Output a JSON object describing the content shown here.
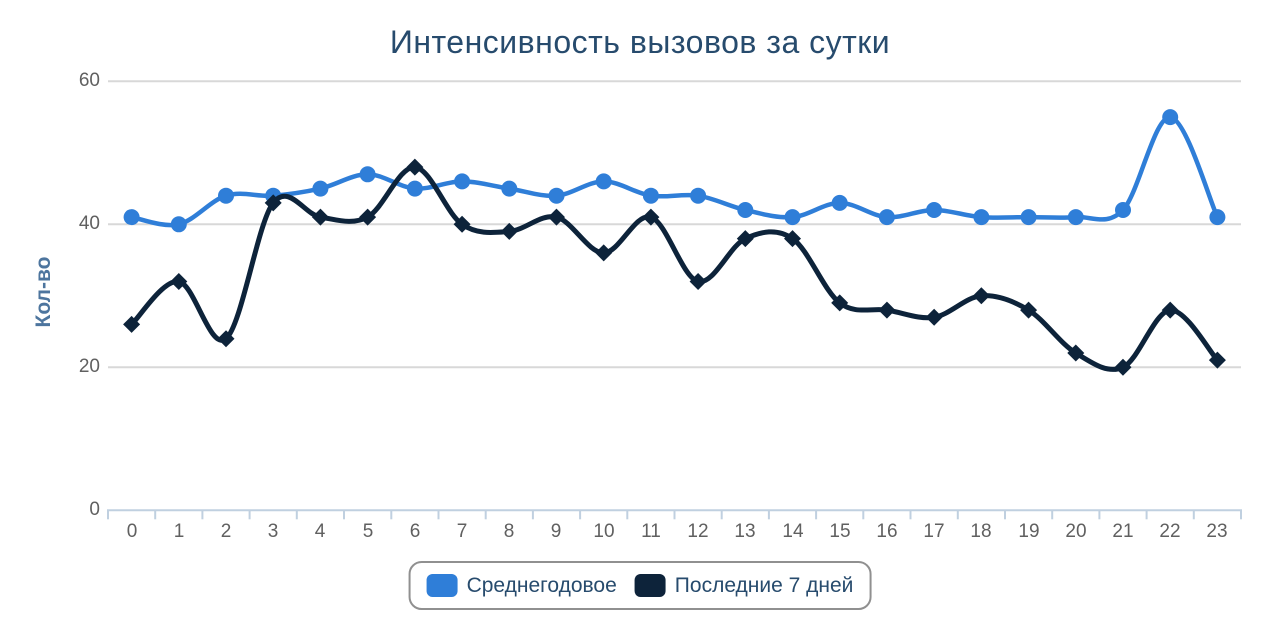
{
  "chart_data": {
    "type": "line",
    "title": "Интенсивность вызовов за сутки",
    "xlabel": "",
    "ylabel": "Кол-во",
    "categories": [
      "0",
      "1",
      "2",
      "3",
      "4",
      "5",
      "6",
      "7",
      "8",
      "9",
      "10",
      "11",
      "12",
      "13",
      "14",
      "15",
      "16",
      "17",
      "18",
      "19",
      "20",
      "21",
      "22",
      "23"
    ],
    "series": [
      {
        "name": "Среднегодовое",
        "color": "#2f7ed8",
        "marker": "circle",
        "values": [
          41,
          40,
          44,
          44,
          45,
          47,
          45,
          46,
          45,
          44,
          46,
          44,
          44,
          42,
          41,
          43,
          41,
          42,
          41,
          41,
          41,
          42,
          55,
          41
        ]
      },
      {
        "name": "Последние 7 дней",
        "color": "#0d233a",
        "marker": "diamond",
        "values": [
          26,
          32,
          24,
          43,
          41,
          41,
          48,
          40,
          39,
          41,
          36,
          41,
          32,
          38,
          38,
          29,
          28,
          27,
          30,
          28,
          22,
          20,
          28,
          21
        ]
      }
    ],
    "y_ticks": [
      0,
      20,
      40,
      60
    ],
    "ylim": [
      0,
      60
    ],
    "grid": "horizontal gridlines at 20/40/60",
    "line_style": "smooth spline",
    "legend_position": "bottom-center, boxed"
  },
  "colors": {
    "background": "#ffffff",
    "title_text": "#274b6d",
    "axis_tick_text": "#606060",
    "y_axis_title_text": "#4d759e",
    "gridline": "#d8d8d8",
    "x_axis_line": "#c0d0e0",
    "legend_border": "#909090",
    "legend_text": "#274b6d",
    "series_blue": "#2f7ed8",
    "series_dark": "#0d233a"
  }
}
